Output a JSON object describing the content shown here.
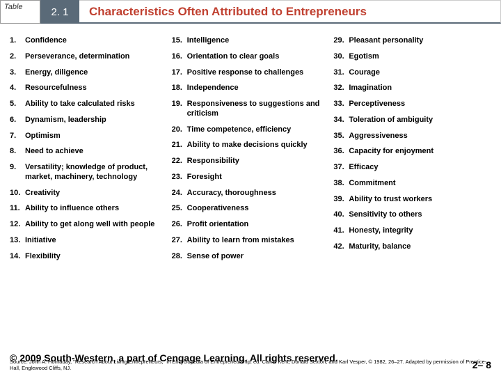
{
  "header": {
    "table_label": "Table",
    "table_num": "2. 1",
    "title": "Characteristics Often Attributed to Entrepreneurs"
  },
  "columns": [
    [
      {
        "n": "1.",
        "t": "Confidence"
      },
      {
        "n": "2.",
        "t": "Perseverance, determination"
      },
      {
        "n": "3.",
        "t": "Energy, diligence"
      },
      {
        "n": "4.",
        "t": "Resourcefulness"
      },
      {
        "n": "5.",
        "t": "Ability to take calculated risks"
      },
      {
        "n": "6.",
        "t": "Dynamism, leadership"
      },
      {
        "n": "7.",
        "t": "Optimism"
      },
      {
        "n": "8.",
        "t": "Need to achieve"
      },
      {
        "n": "9.",
        "t": "Versatility; knowledge of product, market, machinery, technology"
      },
      {
        "n": "10.",
        "t": "Creativity"
      },
      {
        "n": "11.",
        "t": "Ability to influence others"
      },
      {
        "n": "12.",
        "t": "Ability to get along well with people"
      },
      {
        "n": "13.",
        "t": "Initiative"
      },
      {
        "n": "14.",
        "t": "Flexibility"
      }
    ],
    [
      {
        "n": "15.",
        "t": "Intelligence"
      },
      {
        "n": "16.",
        "t": "Orientation to clear goals"
      },
      {
        "n": "17.",
        "t": "Positive response to challenges"
      },
      {
        "n": "18.",
        "t": "Independence"
      },
      {
        "n": "19.",
        "t": "Responsiveness to suggestions and criticism"
      },
      {
        "n": "20.",
        "t": "Time competence, efficiency"
      },
      {
        "n": "21.",
        "t": "Ability to make decisions quickly"
      },
      {
        "n": "22.",
        "t": "Responsibility"
      },
      {
        "n": "23.",
        "t": "Foresight"
      },
      {
        "n": "24.",
        "t": "Accuracy, thoroughness"
      },
      {
        "n": "25.",
        "t": "Cooperativeness"
      },
      {
        "n": "26.",
        "t": "Profit orientation"
      },
      {
        "n": "27.",
        "t": "Ability to learn from mistakes"
      },
      {
        "n": "28.",
        "t": "Sense of power"
      }
    ],
    [
      {
        "n": "29.",
        "t": "Pleasant personality"
      },
      {
        "n": "30.",
        "t": "Egotism"
      },
      {
        "n": "31.",
        "t": "Courage"
      },
      {
        "n": "32.",
        "t": "Imagination"
      },
      {
        "n": "33.",
        "t": "Perceptiveness"
      },
      {
        "n": "34.",
        "t": "Toleration of ambiguity"
      },
      {
        "n": "35.",
        "t": "Aggressiveness"
      },
      {
        "n": "36.",
        "t": "Capacity for enjoyment"
      },
      {
        "n": "37.",
        "t": "Efficacy"
      },
      {
        "n": "38.",
        "t": "Commitment"
      },
      {
        "n": "39.",
        "t": "Ability to trust workers"
      },
      {
        "n": "40.",
        "t": "Sensitivity to others"
      },
      {
        "n": "41.",
        "t": "Honesty, integrity"
      },
      {
        "n": "42.",
        "t": "Maturity, balance"
      }
    ]
  ],
  "footer": {
    "copyright": "© 2009 South-Western, a part of Cengage Learning. All rights reserved.",
    "source": "Source: John A. Hornaday, \"Research About Living Entrepreneurs,\" in Encyclopedia of Entrepreneurship, ed. Calvin Kent, Donald Sexton, and Karl Vesper, © 1982, 26–27. Adapted by permission of Prentice-Hall, Englewood Cliffs, NJ.",
    "page": "2– 8"
  }
}
